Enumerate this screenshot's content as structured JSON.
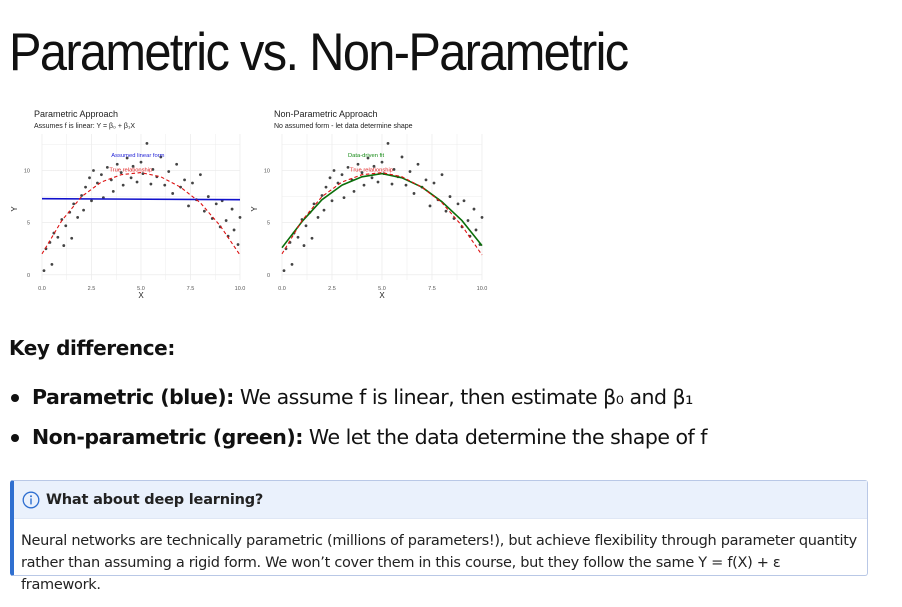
{
  "slide": {
    "title": "Parametric vs. Non-Parametric",
    "key_heading": "Key difference:",
    "bullets": [
      {
        "label": "Parametric (blue):",
        "text": " We assume f is linear, then estimate β₀ and β₁"
      },
      {
        "label": "Non-parametric (green):",
        "text": " We let the data determine the shape of f"
      }
    ],
    "callout": {
      "icon": "info-icon",
      "title": "What about deep learning?",
      "body": "Neural networks are technically parametric (millions of parameters!), but achieve flexibility through parameter quantity rather than assuming a rigid form. We won’t cover them in this course, but they follow the same Y = f(X) + ε framework.",
      "accent_color": "#2f6fd0"
    }
  },
  "chart_data": [
    {
      "type": "scatter",
      "title": "Parametric Approach",
      "subtitle": "Assumes f is linear: Y = β₀ + β₁X",
      "xlabel": "X",
      "ylabel": "Y",
      "xlim": [
        0,
        10
      ],
      "ylim": [
        -0.5,
        13.5
      ],
      "xticks": [
        "0.0",
        "2.5",
        "5.0",
        "7.5",
        "10.0"
      ],
      "yticks": [
        "0",
        "5",
        "10"
      ],
      "grid": true,
      "annotations": [
        {
          "text": "Assumed linear form",
          "color": "#1f1fd6",
          "x": 3.5,
          "y": 11.3
        },
        {
          "text": "True relationship",
          "color": "#e02020",
          "x": 3.4,
          "y": 9.9
        }
      ],
      "series": [
        {
          "kind": "line",
          "color": "#1111cc",
          "x": [
            0,
            10
          ],
          "y": [
            7.3,
            7.2
          ]
        },
        {
          "kind": "dashed",
          "color": "#dd1111",
          "x": [
            0,
            1,
            2,
            3,
            4,
            5,
            6,
            7,
            8,
            9,
            10
          ],
          "y": [
            2.0,
            5.2,
            7.5,
            8.9,
            9.6,
            9.8,
            9.4,
            8.4,
            6.9,
            4.7,
            1.9
          ]
        }
      ],
      "points": [
        [
          0.1,
          0.4
        ],
        [
          0.2,
          2.5
        ],
        [
          0.4,
          3.1
        ],
        [
          0.5,
          1.0
        ],
        [
          0.6,
          4.0
        ],
        [
          0.8,
          3.6
        ],
        [
          1.0,
          5.3
        ],
        [
          1.1,
          2.8
        ],
        [
          1.2,
          4.7
        ],
        [
          1.4,
          6.0
        ],
        [
          1.5,
          3.5
        ],
        [
          1.6,
          6.8
        ],
        [
          1.8,
          5.5
        ],
        [
          2.0,
          7.6
        ],
        [
          2.1,
          6.2
        ],
        [
          2.2,
          8.4
        ],
        [
          2.4,
          9.3
        ],
        [
          2.5,
          7.1
        ],
        [
          2.6,
          10.0
        ],
        [
          2.8,
          8.8
        ],
        [
          3.0,
          9.6
        ],
        [
          3.1,
          7.4
        ],
        [
          3.3,
          10.3
        ],
        [
          3.5,
          9.1
        ],
        [
          3.6,
          8.0
        ],
        [
          3.8,
          10.6
        ],
        [
          4.0,
          9.8
        ],
        [
          4.1,
          8.6
        ],
        [
          4.3,
          11.2
        ],
        [
          4.5,
          9.3
        ],
        [
          4.6,
          10.4
        ],
        [
          4.8,
          8.9
        ],
        [
          5.0,
          10.8
        ],
        [
          5.1,
          9.7
        ],
        [
          5.3,
          12.6
        ],
        [
          5.5,
          8.7
        ],
        [
          5.6,
          10.1
        ],
        [
          5.8,
          9.4
        ],
        [
          6.0,
          11.3
        ],
        [
          6.2,
          8.6
        ],
        [
          6.4,
          9.9
        ],
        [
          6.6,
          7.8
        ],
        [
          6.8,
          10.6
        ],
        [
          7.0,
          8.4
        ],
        [
          7.2,
          9.1
        ],
        [
          7.4,
          6.6
        ],
        [
          7.6,
          8.8
        ],
        [
          7.8,
          7.2
        ],
        [
          8.0,
          9.6
        ],
        [
          8.2,
          6.1
        ],
        [
          8.4,
          7.5
        ],
        [
          8.6,
          5.4
        ],
        [
          8.8,
          6.8
        ],
        [
          9.0,
          4.6
        ],
        [
          9.1,
          7.1
        ],
        [
          9.3,
          5.2
        ],
        [
          9.4,
          3.7
        ],
        [
          9.6,
          6.3
        ],
        [
          9.7,
          4.3
        ],
        [
          9.9,
          2.9
        ],
        [
          10.0,
          5.5
        ]
      ]
    },
    {
      "type": "scatter",
      "title": "Non-Parametric Approach",
      "subtitle": "No assumed form - let data determine shape",
      "xlabel": "X",
      "ylabel": "Y",
      "xlim": [
        0,
        10
      ],
      "ylim": [
        -0.5,
        13.5
      ],
      "xticks": [
        "0.0",
        "2.5",
        "5.0",
        "7.5",
        "10.0"
      ],
      "yticks": [
        "0",
        "5",
        "10"
      ],
      "grid": true,
      "annotations": [
        {
          "text": "Data-driven fit",
          "color": "#158a15",
          "x": 3.3,
          "y": 11.3
        },
        {
          "text": "True relationship",
          "color": "#e02020",
          "x": 3.4,
          "y": 9.9
        }
      ],
      "series": [
        {
          "kind": "line",
          "color": "#0a6e0a",
          "x": [
            0,
            1,
            2,
            3,
            4,
            5,
            6,
            7,
            8,
            9,
            10
          ],
          "y": [
            2.6,
            5.1,
            7.2,
            8.6,
            9.4,
            9.7,
            9.3,
            8.4,
            7.0,
            5.2,
            2.8
          ]
        },
        {
          "kind": "dashed",
          "color": "#dd1111",
          "x": [
            0,
            1,
            2,
            3,
            4,
            5,
            6,
            7,
            8,
            9,
            10
          ],
          "y": [
            2.0,
            5.2,
            7.5,
            8.9,
            9.6,
            9.8,
            9.4,
            8.4,
            6.9,
            4.7,
            1.9
          ]
        }
      ],
      "points": [
        [
          0.1,
          0.4
        ],
        [
          0.2,
          2.5
        ],
        [
          0.4,
          3.1
        ],
        [
          0.5,
          1.0
        ],
        [
          0.6,
          4.0
        ],
        [
          0.8,
          3.6
        ],
        [
          1.0,
          5.3
        ],
        [
          1.1,
          2.8
        ],
        [
          1.2,
          4.7
        ],
        [
          1.4,
          6.0
        ],
        [
          1.5,
          3.5
        ],
        [
          1.6,
          6.8
        ],
        [
          1.8,
          5.5
        ],
        [
          2.0,
          7.6
        ],
        [
          2.1,
          6.2
        ],
        [
          2.2,
          8.4
        ],
        [
          2.4,
          9.3
        ],
        [
          2.5,
          7.1
        ],
        [
          2.6,
          10.0
        ],
        [
          2.8,
          8.8
        ],
        [
          3.0,
          9.6
        ],
        [
          3.1,
          7.4
        ],
        [
          3.3,
          10.3
        ],
        [
          3.5,
          9.1
        ],
        [
          3.6,
          8.0
        ],
        [
          3.8,
          10.6
        ],
        [
          4.0,
          9.8
        ],
        [
          4.1,
          8.6
        ],
        [
          4.3,
          11.2
        ],
        [
          4.5,
          9.3
        ],
        [
          4.6,
          10.4
        ],
        [
          4.8,
          8.9
        ],
        [
          5.0,
          10.8
        ],
        [
          5.1,
          9.7
        ],
        [
          5.3,
          12.6
        ],
        [
          5.5,
          8.7
        ],
        [
          5.6,
          10.1
        ],
        [
          5.8,
          9.4
        ],
        [
          6.0,
          11.3
        ],
        [
          6.2,
          8.6
        ],
        [
          6.4,
          9.9
        ],
        [
          6.6,
          7.8
        ],
        [
          6.8,
          10.6
        ],
        [
          7.0,
          8.4
        ],
        [
          7.2,
          9.1
        ],
        [
          7.4,
          6.6
        ],
        [
          7.6,
          8.8
        ],
        [
          7.8,
          7.2
        ],
        [
          8.0,
          9.6
        ],
        [
          8.2,
          6.1
        ],
        [
          8.4,
          7.5
        ],
        [
          8.6,
          5.4
        ],
        [
          8.8,
          6.8
        ],
        [
          9.0,
          4.6
        ],
        [
          9.1,
          7.1
        ],
        [
          9.3,
          5.2
        ],
        [
          9.4,
          3.7
        ],
        [
          9.6,
          6.3
        ],
        [
          9.7,
          4.3
        ],
        [
          9.9,
          2.9
        ],
        [
          10.0,
          5.5
        ]
      ]
    }
  ]
}
